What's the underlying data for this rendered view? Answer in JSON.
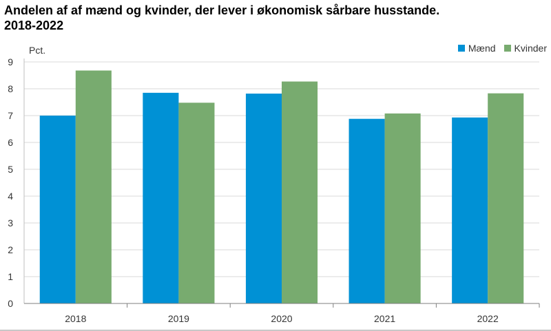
{
  "title_line1": "Andelen af af mænd og kvinder, der lever i økonomisk sårbare husstande.",
  "title_line2": "2018-2022",
  "chart_data": {
    "type": "bar",
    "title": "Andelen af af mænd og kvinder, der lever i økonomisk sårbare husstande. 2018-2022",
    "ylabel": "Pct.",
    "xlabel": "",
    "categories": [
      "2018",
      "2019",
      "2020",
      "2021",
      "2022"
    ],
    "series": [
      {
        "name": "Mænd",
        "color": "#0091d5",
        "values": [
          7.0,
          7.85,
          7.82,
          6.88,
          6.93
        ]
      },
      {
        "name": "Kvinder",
        "color": "#78ab6f",
        "values": [
          8.68,
          7.48,
          8.27,
          7.08,
          7.83
        ]
      }
    ],
    "ylim": [
      0,
      9
    ],
    "yticks": [
      0,
      1,
      2,
      3,
      4,
      5,
      6,
      7,
      8,
      9
    ],
    "grid": true,
    "legend_position": "top-right"
  }
}
